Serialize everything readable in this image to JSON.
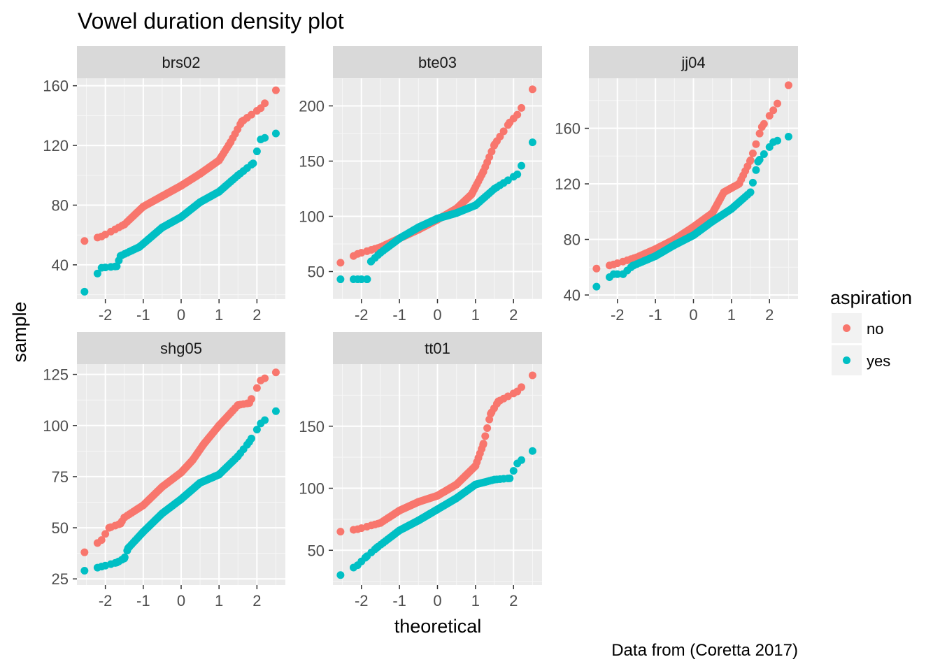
{
  "chart_data": {
    "type": "scatter",
    "subtype": "qq-facet",
    "title": "Vowel duration density plot",
    "xlabel": "theoretical",
    "ylabel": "sample",
    "caption": "Data from (Coretta 2017)",
    "legend": {
      "title": "aspiration",
      "placement": "right",
      "entries": [
        {
          "label": "no",
          "color": "#F8766D"
        },
        {
          "label": "yes",
          "color": "#00BFC4"
        }
      ]
    },
    "grid": true,
    "panels": [
      {
        "name": "brs02",
        "xlim": [
          -2.75,
          2.75
        ],
        "ylim": [
          17,
          165
        ],
        "xticks": [
          -2,
          -1,
          0,
          1,
          2
        ],
        "xtick_labels": [
          "-2",
          "-1",
          "0",
          "1",
          "2"
        ],
        "yticks": [
          40,
          80,
          120,
          160
        ],
        "ytick_labels": [
          "40",
          "80",
          "120",
          "160"
        ],
        "series": [
          {
            "name": "no",
            "anchors": [
              [
                -2.55,
                56
              ],
              [
                -2.1,
                59
              ],
              [
                -1.5,
                67
              ],
              [
                -1,
                79
              ],
              [
                -0.5,
                86
              ],
              [
                0,
                93
              ],
              [
                0.5,
                101
              ],
              [
                1,
                110
              ],
              [
                1.3,
                122
              ],
              [
                1.6,
                136
              ],
              [
                2.1,
                145
              ],
              [
                2.5,
                157
              ]
            ]
          },
          {
            "name": "yes",
            "anchors": [
              [
                -2.55,
                22
              ],
              [
                -2.1,
                38
              ],
              [
                -1.7,
                39
              ],
              [
                -1.6,
                46
              ],
              [
                -1.1,
                52
              ],
              [
                -0.5,
                65
              ],
              [
                0,
                72
              ],
              [
                0.5,
                82
              ],
              [
                1,
                89
              ],
              [
                1.5,
                100
              ],
              [
                1.9,
                108
              ],
              [
                2.1,
                124
              ],
              [
                2.5,
                128
              ]
            ]
          }
        ]
      },
      {
        "name": "bte03",
        "xlim": [
          -2.75,
          2.75
        ],
        "ylim": [
          25,
          225
        ],
        "xticks": [
          -2,
          -1,
          0,
          1,
          2
        ],
        "xtick_labels": [
          "-2",
          "-1",
          "0",
          "1",
          "2"
        ],
        "yticks": [
          50,
          100,
          150,
          200
        ],
        "ytick_labels": [
          "50",
          "100",
          "150",
          "200"
        ],
        "series": [
          {
            "name": "no",
            "anchors": [
              [
                -2.55,
                58
              ],
              [
                -2.1,
                66
              ],
              [
                -1.5,
                72
              ],
              [
                -1,
                80
              ],
              [
                -0.5,
                88
              ],
              [
                0,
                97
              ],
              [
                0.5,
                107
              ],
              [
                0.9,
                120
              ],
              [
                1.2,
                140
              ],
              [
                1.5,
                165
              ],
              [
                1.9,
                185
              ],
              [
                2.1,
                192
              ],
              [
                2.5,
                215
              ]
            ]
          },
          {
            "name": "yes",
            "anchors": [
              [
                -2.55,
                43
              ],
              [
                -2.1,
                43
              ],
              [
                -1.85,
                43
              ],
              [
                -1.75,
                59
              ],
              [
                -1.5,
                67
              ],
              [
                -1,
                80
              ],
              [
                -0.5,
                90
              ],
              [
                0,
                98
              ],
              [
                0.5,
                103
              ],
              [
                1,
                110
              ],
              [
                1.5,
                125
              ],
              [
                2.1,
                138
              ],
              [
                2.5,
                167
              ]
            ]
          }
        ]
      },
      {
        "name": "jj04",
        "xlim": [
          -2.75,
          2.75
        ],
        "ylim": [
          37,
          196
        ],
        "xticks": [
          -2,
          -1,
          0,
          1,
          2
        ],
        "xtick_labels": [
          "-2",
          "-1",
          "0",
          "1",
          "2"
        ],
        "yticks": [
          40,
          80,
          120,
          160
        ],
        "ytick_labels": [
          "40",
          "80",
          "120",
          "160"
        ],
        "series": [
          {
            "name": "no",
            "anchors": [
              [
                -2.55,
                59
              ],
              [
                -2.1,
                62
              ],
              [
                -1.5,
                67
              ],
              [
                -1,
                73
              ],
              [
                -0.5,
                80
              ],
              [
                0,
                89
              ],
              [
                0.5,
                99
              ],
              [
                0.8,
                114
              ],
              [
                1.2,
                120
              ],
              [
                1.5,
                137
              ],
              [
                1.8,
                161
              ],
              [
                2.1,
                173
              ],
              [
                2.5,
                191
              ]
            ]
          },
          {
            "name": "yes",
            "anchors": [
              [
                -2.55,
                46
              ],
              [
                -2.1,
                55
              ],
              [
                -1.85,
                55
              ],
              [
                -1.6,
                61
              ],
              [
                -1,
                68
              ],
              [
                -0.5,
                76
              ],
              [
                0,
                83
              ],
              [
                0.5,
                93
              ],
              [
                1,
                102
              ],
              [
                1.5,
                114
              ],
              [
                1.7,
                136
              ],
              [
                2.1,
                150
              ],
              [
                2.5,
                154
              ]
            ]
          }
        ]
      },
      {
        "name": "shg05",
        "xlim": [
          -2.75,
          2.75
        ],
        "ylim": [
          22,
          130
        ],
        "xticks": [
          -2,
          -1,
          0,
          1,
          2
        ],
        "xtick_labels": [
          "-2",
          "-1",
          "0",
          "1",
          "2"
        ],
        "yticks": [
          25,
          50,
          75,
          100,
          125
        ],
        "ytick_labels": [
          "25",
          "50",
          "75",
          "100",
          "125"
        ],
        "series": [
          {
            "name": "no",
            "anchors": [
              [
                -2.55,
                38
              ],
              [
                -2.1,
                44
              ],
              [
                -1.9,
                50
              ],
              [
                -1.6,
                52
              ],
              [
                -1.5,
                55
              ],
              [
                -1,
                61
              ],
              [
                -0.5,
                70
              ],
              [
                0,
                77
              ],
              [
                0.3,
                83
              ],
              [
                0.6,
                91
              ],
              [
                1,
                100
              ],
              [
                1.5,
                110
              ],
              [
                1.8,
                111
              ],
              [
                2.1,
                122
              ],
              [
                2.5,
                126
              ]
            ]
          },
          {
            "name": "yes",
            "anchors": [
              [
                -2.55,
                29
              ],
              [
                -2.1,
                31
              ],
              [
                -1.7,
                33
              ],
              [
                -1.5,
                35
              ],
              [
                -1.4,
                40
              ],
              [
                -1,
                48
              ],
              [
                -0.5,
                57
              ],
              [
                0,
                64
              ],
              [
                0.5,
                72
              ],
              [
                1,
                76
              ],
              [
                1.5,
                85
              ],
              [
                1.8,
                92
              ],
              [
                2.1,
                101
              ],
              [
                2.5,
                107
              ]
            ]
          }
        ]
      },
      {
        "name": "tt01",
        "xlim": [
          -2.75,
          2.75
        ],
        "ylim": [
          22,
          200
        ],
        "xticks": [
          -2,
          -1,
          0,
          1,
          2
        ],
        "xtick_labels": [
          "-2",
          "-1",
          "0",
          "1",
          "2"
        ],
        "yticks": [
          50,
          100,
          150
        ],
        "ytick_labels": [
          "50",
          "100",
          "150"
        ],
        "series": [
          {
            "name": "no",
            "anchors": [
              [
                -2.55,
                65
              ],
              [
                -2.1,
                67
              ],
              [
                -1.5,
                72
              ],
              [
                -1,
                82
              ],
              [
                -0.5,
                89
              ],
              [
                0,
                94
              ],
              [
                0.5,
                103
              ],
              [
                1,
                118
              ],
              [
                1.2,
                135
              ],
              [
                1.4,
                160
              ],
              [
                1.6,
                170
              ],
              [
                2.1,
                178
              ],
              [
                2.5,
                191
              ]
            ]
          },
          {
            "name": "yes",
            "anchors": [
              [
                -2.55,
                30
              ],
              [
                -2.1,
                38
              ],
              [
                -1.9,
                44
              ],
              [
                -1.6,
                52
              ],
              [
                -1,
                66
              ],
              [
                -0.5,
                74
              ],
              [
                0,
                83
              ],
              [
                0.5,
                92
              ],
              [
                1,
                103
              ],
              [
                1.5,
                107
              ],
              [
                1.9,
                108
              ],
              [
                2.1,
                120
              ],
              [
                2.5,
                130
              ]
            ]
          }
        ]
      }
    ]
  }
}
